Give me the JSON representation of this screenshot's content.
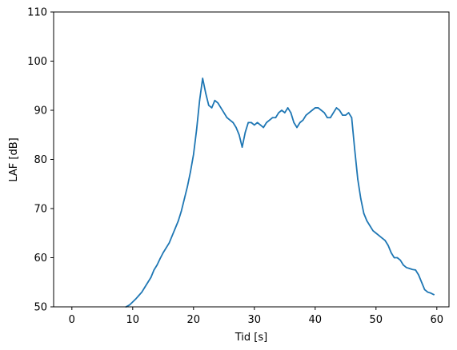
{
  "chart_data": {
    "type": "line",
    "title": "",
    "xlabel": "Tid [s]",
    "ylabel": "LAF [dB]",
    "xlim": [
      -3,
      62
    ],
    "ylim": [
      50,
      110
    ],
    "xticks": [
      0,
      10,
      20,
      30,
      40,
      50,
      60
    ],
    "yticks": [
      50,
      60,
      70,
      80,
      90,
      100,
      110
    ],
    "xtick_labels": [
      "0",
      "10",
      "20",
      "30",
      "40",
      "50",
      "60"
    ],
    "ytick_labels": [
      "50",
      "60",
      "70",
      "80",
      "90",
      "100",
      "110"
    ],
    "grid": false,
    "legend": "none",
    "series": [
      {
        "color": "#1f77b4",
        "x": [
          8.9,
          9.5,
          10,
          10.5,
          11,
          11.5,
          12,
          12.5,
          13,
          13.5,
          14,
          14.5,
          15,
          15.5,
          16,
          16.5,
          17,
          17.5,
          18,
          18.5,
          19,
          19.5,
          20,
          20.5,
          21,
          21.5,
          22,
          22.5,
          23,
          23.5,
          24,
          24.5,
          25,
          25.5,
          26,
          26.5,
          27,
          27.5,
          28,
          28.5,
          29,
          29.5,
          30,
          30.5,
          31,
          31.5,
          32,
          32.5,
          33,
          33.5,
          34,
          34.5,
          35,
          35.5,
          36,
          36.5,
          37,
          37.5,
          38,
          38.5,
          39,
          39.5,
          40,
          40.5,
          41,
          41.5,
          42,
          42.5,
          43,
          43.5,
          44,
          44.5,
          45,
          45.5,
          46,
          46.5,
          47,
          47.5,
          48,
          48.5,
          49,
          49.5,
          50,
          50.5,
          51,
          51.5,
          52,
          52.5,
          53,
          53.5,
          54,
          54.5,
          55,
          55.5,
          56,
          56.5,
          57,
          57.5,
          58,
          58.5,
          59,
          59.5
        ],
        "values": [
          50,
          50.4,
          51,
          51.6,
          52.3,
          53,
          54,
          55,
          56,
          57.5,
          58.5,
          59.8,
          61,
          62,
          63,
          64.5,
          66,
          67.5,
          69.5,
          72,
          74.5,
          77.5,
          81,
          86,
          92,
          96.5,
          93.5,
          91,
          90.5,
          92,
          91.5,
          90.5,
          89.5,
          88.5,
          88,
          87.5,
          86.5,
          85,
          82.5,
          85.5,
          87.5,
          87.5,
          87,
          87.5,
          87,
          86.5,
          87.5,
          88,
          88.5,
          88.5,
          89.5,
          90,
          89.5,
          90.5,
          89.5,
          87.5,
          86.5,
          87.5,
          88,
          89,
          89.5,
          90,
          90.5,
          90.5,
          90,
          89.5,
          88.5,
          88.5,
          89.5,
          90.5,
          90,
          89,
          89,
          89.5,
          88.5,
          82,
          76,
          72,
          69,
          67.5,
          66.5,
          65.5,
          65,
          64.5,
          64,
          63.5,
          62.5,
          61,
          60,
          60,
          59.5,
          58.5,
          58,
          57.8,
          57.6,
          57.5,
          56.5,
          55,
          53.5,
          53,
          52.8,
          52.5
        ]
      }
    ]
  }
}
